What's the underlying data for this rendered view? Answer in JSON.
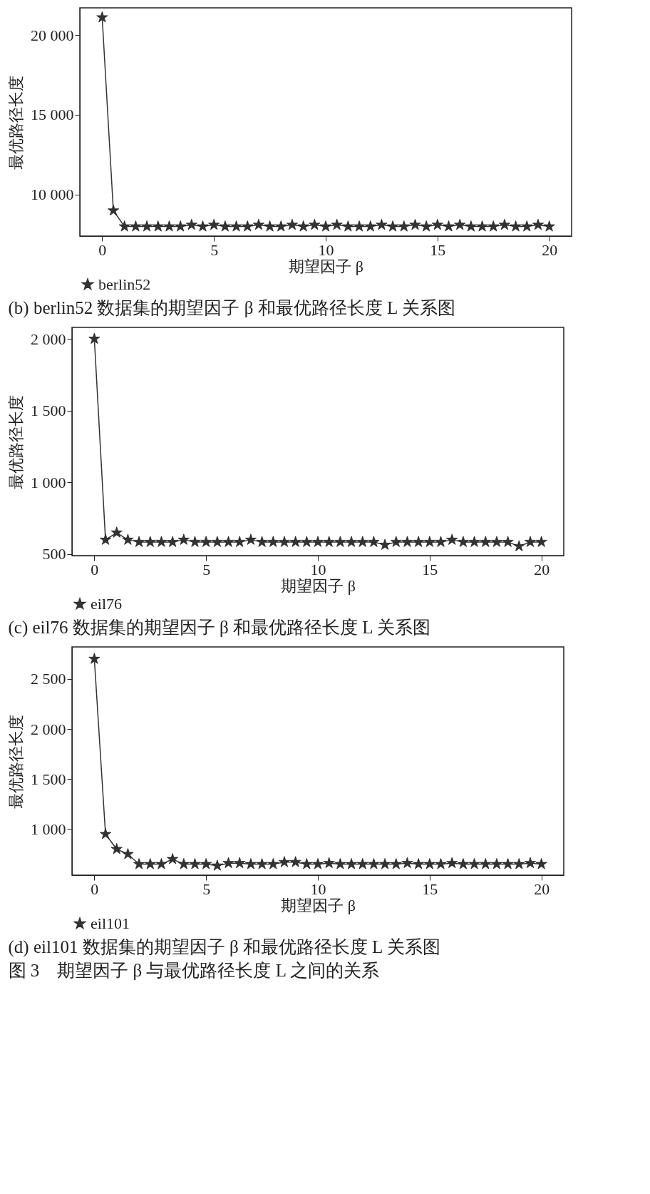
{
  "chart_data": [
    {
      "type": "line",
      "title": "(b) berlin52 数据集的期望因子 β 和最优路径长度 L 关系图",
      "xlabel": "期望因子 β",
      "ylabel": "最优路径长度",
      "marker": "star",
      "legend": "bottom",
      "xlim": [
        -1,
        21
      ],
      "xticks": [
        0,
        5,
        10,
        15,
        20
      ],
      "ylim": [
        7400,
        21700
      ],
      "yticks": [
        {
          "value": 10000,
          "label": "10 000"
        },
        {
          "value": 15000,
          "label": "15 000"
        },
        {
          "value": 20000,
          "label": "20 000"
        }
      ],
      "x": [
        0,
        0.5,
        1,
        1.5,
        2,
        2.5,
        3,
        3.5,
        4,
        4.5,
        5,
        5.5,
        6,
        6.5,
        7,
        7.5,
        8,
        8.5,
        9,
        9.5,
        10,
        10.5,
        11,
        11.5,
        12,
        12.5,
        13,
        13.5,
        14,
        14.5,
        15,
        15.5,
        16,
        16.5,
        17,
        17.5,
        18,
        18.5,
        19,
        19.5,
        20
      ],
      "series": [
        {
          "name": "berlin52",
          "color": "#333333",
          "values": [
            21100,
            9000,
            8000,
            8000,
            8000,
            8000,
            8000,
            8000,
            8100,
            8000,
            8100,
            8000,
            8000,
            8000,
            8100,
            8000,
            8000,
            8100,
            8000,
            8100,
            8000,
            8100,
            8000,
            8000,
            8000,
            8100,
            8000,
            8000,
            8100,
            8000,
            8100,
            8000,
            8100,
            8000,
            8000,
            8000,
            8100,
            8000,
            8000,
            8100,
            8000
          ]
        }
      ]
    },
    {
      "type": "line",
      "title": "(c) eil76 数据集的期望因子 β 和最优路径长度 L 关系图",
      "xlabel": "期望因子 β",
      "ylabel": "最优路径长度",
      "marker": "star",
      "legend": "bottom",
      "xlim": [
        -1,
        21
      ],
      "xticks": [
        0,
        5,
        10,
        15,
        20
      ],
      "ylim": [
        490,
        2080
      ],
      "yticks": [
        500,
        {
          "value": 1000,
          "label": "1 000"
        },
        {
          "value": 1500,
          "label": "1 500"
        },
        {
          "value": 2000,
          "label": "2 000"
        }
      ],
      "x": [
        0,
        0.5,
        1,
        1.5,
        2,
        2.5,
        3,
        3.5,
        4,
        4.5,
        5,
        5.5,
        6,
        6.5,
        7,
        7.5,
        8,
        8.5,
        9,
        9.5,
        10,
        10.5,
        11,
        11.5,
        12,
        12.5,
        13,
        13.5,
        14,
        14.5,
        15,
        15.5,
        16,
        16.5,
        17,
        17.5,
        18,
        18.5,
        19,
        19.5,
        20
      ],
      "series": [
        {
          "name": "eil76",
          "color": "#333333",
          "values": [
            2000,
            600,
            650,
            600,
            585,
            585,
            585,
            585,
            600,
            585,
            585,
            585,
            585,
            585,
            600,
            585,
            585,
            585,
            585,
            585,
            585,
            585,
            585,
            585,
            585,
            585,
            565,
            585,
            585,
            585,
            585,
            585,
            600,
            585,
            585,
            585,
            585,
            585,
            555,
            585,
            585
          ]
        }
      ]
    },
    {
      "type": "line",
      "title": "(d) eil101 数据集的期望因子 β 和最优路径长度 L 关系图",
      "xlabel": "期望因子 β",
      "ylabel": "最优路径长度",
      "marker": "star",
      "legend": "bottom",
      "xlim": [
        -1,
        21
      ],
      "xticks": [
        0,
        5,
        10,
        15,
        20
      ],
      "ylim": [
        540,
        2820
      ],
      "yticks": [
        {
          "value": 1000,
          "label": "1 000"
        },
        {
          "value": 1500,
          "label": "1 500"
        },
        {
          "value": 2000,
          "label": "2 000"
        },
        {
          "value": 2500,
          "label": "2 500"
        }
      ],
      "annotations": [
        "图 3　期望因子 β 与最优路径长度 L 之间的关系"
      ],
      "x": [
        0,
        0.5,
        1,
        1.5,
        2,
        2.5,
        3,
        3.5,
        4,
        4.5,
        5,
        5.5,
        6,
        6.5,
        7,
        7.5,
        8,
        8.5,
        9,
        9.5,
        10,
        10.5,
        11,
        11.5,
        12,
        12.5,
        13,
        13.5,
        14,
        14.5,
        15,
        15.5,
        16,
        16.5,
        17,
        17.5,
        18,
        18.5,
        19,
        19.5,
        20
      ],
      "series": [
        {
          "name": "eil101",
          "color": "#333333",
          "values": [
            2700,
            950,
            800,
            750,
            650,
            650,
            650,
            700,
            650,
            650,
            650,
            635,
            660,
            660,
            650,
            650,
            650,
            670,
            670,
            650,
            650,
            660,
            650,
            650,
            650,
            650,
            650,
            650,
            660,
            650,
            650,
            650,
            660,
            650,
            650,
            650,
            650,
            650,
            650,
            660,
            650
          ]
        }
      ]
    }
  ]
}
